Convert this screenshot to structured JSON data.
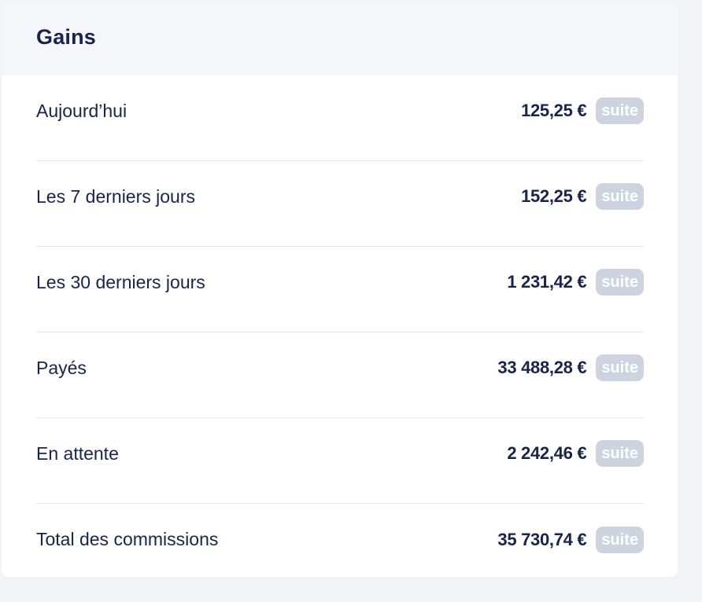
{
  "header": {
    "title": "Gains"
  },
  "rows": [
    {
      "label": "Aujourd’hui",
      "amount": "125,25 €",
      "action": "suite"
    },
    {
      "label": "Les 7 derniers jours",
      "amount": "152,25 €",
      "action": "suite"
    },
    {
      "label": "Les 30 derniers jours",
      "amount": "1 231,42 €",
      "action": "suite"
    },
    {
      "label": "Payés",
      "amount": "33 488,28 €",
      "action": "suite"
    },
    {
      "label": "En attente",
      "amount": "2 242,46 €",
      "action": "suite"
    },
    {
      "label": "Total des commissions",
      "amount": "35 730,74 €",
      "action": "suite"
    }
  ]
}
